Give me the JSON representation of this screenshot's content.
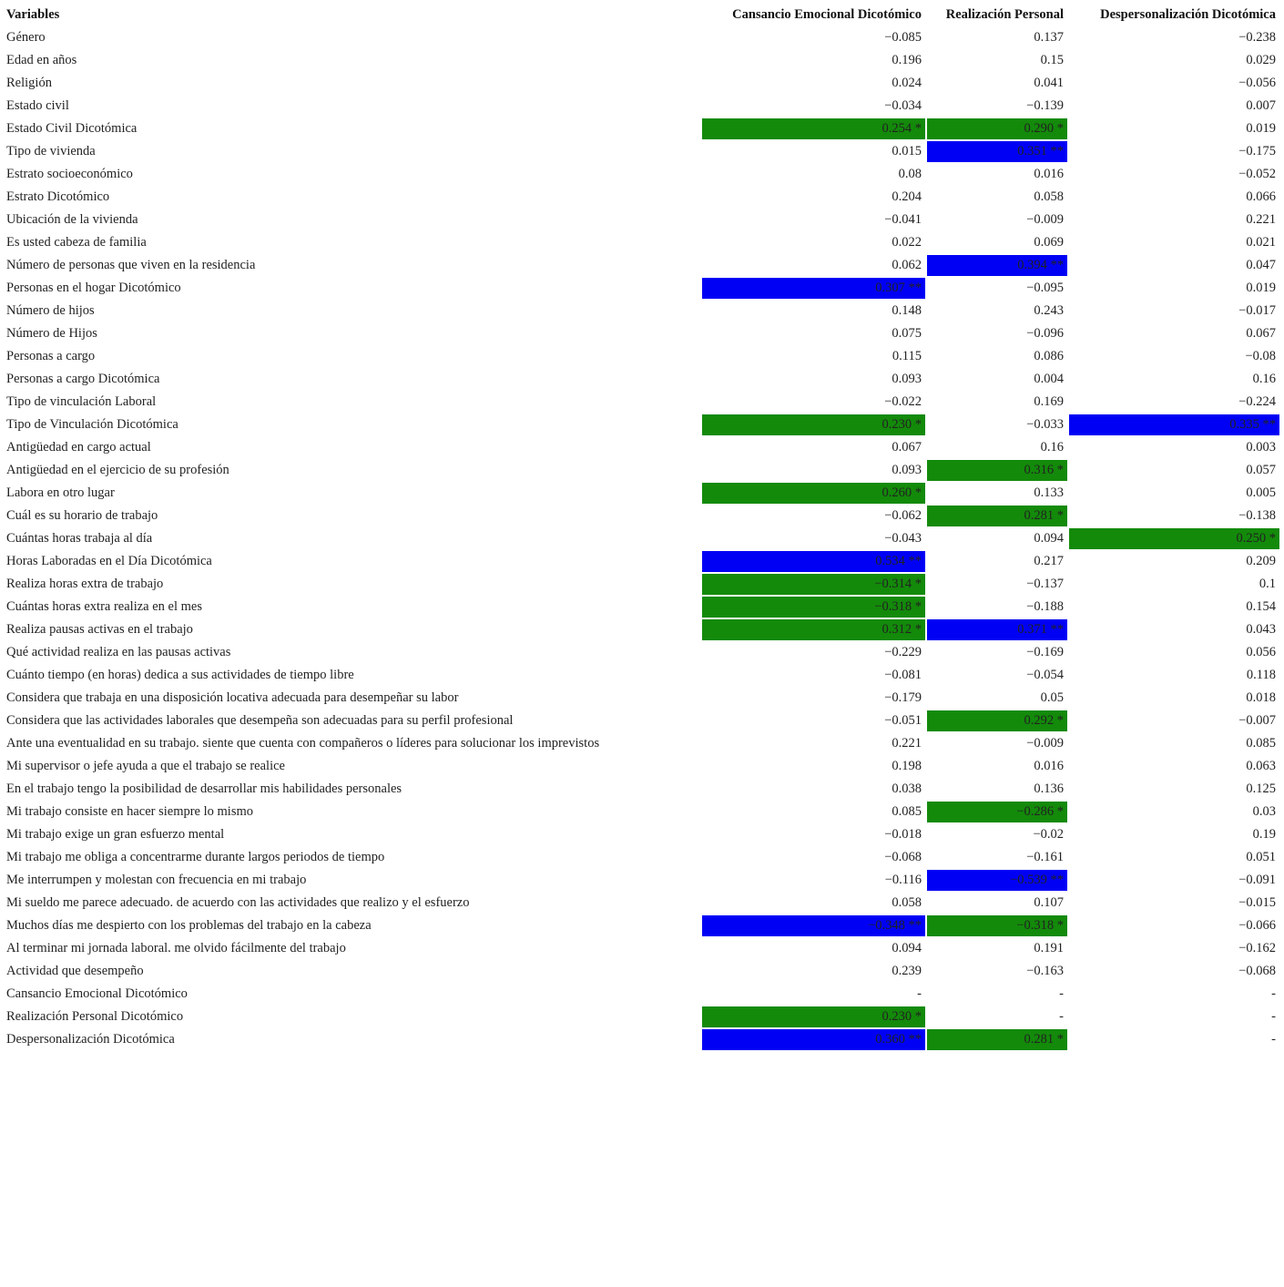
{
  "table": {
    "header": [
      "Variables",
      "Cansancio Emocional Dicotómico",
      "Realización Personal",
      "Despersonalización Dicotómica"
    ],
    "rows": [
      [
        "Género",
        "−0.085",
        "0.137",
        "−0.238"
      ],
      [
        "Edad en años",
        "0.196",
        "0.15",
        "0.029"
      ],
      [
        "Religión",
        "0.024",
        "0.041",
        "−0.056"
      ],
      [
        "Estado civil",
        "−0.034",
        "−0.139",
        "0.007"
      ],
      [
        "Estado Civil Dicotómica",
        "0.254 *",
        "0.290 *",
        "0.019"
      ],
      [
        "Tipo de vivienda",
        "0.015",
        "0.351 **",
        "−0.175"
      ],
      [
        "Estrato socioeconómico",
        "0.08",
        "0.016",
        "−0.052"
      ],
      [
        "Estrato Dicotómico",
        "0.204",
        "0.058",
        "0.066"
      ],
      [
        "Ubicación de la vivienda",
        "−0.041",
        "−0.009",
        "0.221"
      ],
      [
        "Es usted cabeza de familia",
        "0.022",
        "0.069",
        "0.021"
      ],
      [
        "Número de personas que viven en la residencia",
        "0.062",
        "0.394 **",
        "0.047"
      ],
      [
        "Personas en el hogar Dicotómico",
        "0.307 **",
        "−0.095",
        "0.019"
      ],
      [
        "Número de hijos",
        "0.148",
        "0.243",
        "−0.017"
      ],
      [
        "Número de Hijos",
        "0.075",
        "−0.096",
        "0.067"
      ],
      [
        "Personas a cargo",
        "0.115",
        "0.086",
        "−0.08"
      ],
      [
        "Personas a cargo Dicotómica",
        "0.093",
        "0.004",
        "0.16"
      ],
      [
        "Tipo de vinculación Laboral",
        "−0.022",
        "0.169",
        "−0.224"
      ],
      [
        "Tipo de Vinculación Dicotómica",
        "0.230 *",
        "−0.033",
        "0.335 **"
      ],
      [
        "Antigüedad en cargo actual",
        "0.067",
        "0.16",
        "0.003"
      ],
      [
        "Antigüedad en el ejercicio de su profesión",
        "0.093",
        "0.316 *",
        "0.057"
      ],
      [
        "Labora en otro lugar",
        "0.260 *",
        "0.133",
        "0.005"
      ],
      [
        "Cuál es su horario de trabajo",
        "−0.062",
        "0.281 *",
        "−0.138"
      ],
      [
        "Cuántas horas trabaja al día",
        "−0.043",
        "0.094",
        "0.250 *"
      ],
      [
        "Horas Laboradas en el Día Dicotómica",
        "0.534 **",
        "0.217",
        "0.209"
      ],
      [
        "Realiza horas extra de trabajo",
        "−0.314 *",
        "−0.137",
        "0.1"
      ],
      [
        "Cuántas horas extra realiza en el mes",
        "−0.318 *",
        "−0.188",
        "0.154"
      ],
      [
        "Realiza pausas activas en el trabajo",
        "0.312 *",
        "0.371 **",
        "0.043"
      ],
      [
        "Qué actividad realiza en las pausas activas",
        "−0.229",
        "−0.169",
        "0.056"
      ],
      [
        "Cuánto tiempo (en horas) dedica a sus actividades de tiempo libre",
        "−0.081",
        "−0.054",
        "0.118"
      ],
      [
        "Considera que trabaja en una disposición locativa adecuada para desempeñar su labor",
        "−0.179",
        "0.05",
        "0.018"
      ],
      [
        "Considera que las actividades laborales que desempeña son adecuadas para su perfil profesional",
        "−0.051",
        "0.292 *",
        "−0.007"
      ],
      [
        "Ante una eventualidad en su trabajo. siente que cuenta con compañeros o líderes para solucionar los imprevistos",
        "0.221",
        "−0.009",
        "0.085"
      ],
      [
        "Mi supervisor o jefe ayuda a que el trabajo se realice",
        "0.198",
        "0.016",
        "0.063"
      ],
      [
        "En el trabajo tengo la posibilidad de desarrollar mis habilidades personales",
        "0.038",
        "0.136",
        "0.125"
      ],
      [
        "Mi trabajo consiste en hacer siempre lo mismo",
        "0.085",
        "−0.286 *",
        "0.03"
      ],
      [
        "Mi trabajo exige un gran esfuerzo mental",
        "−0.018",
        "−0.02",
        "0.19"
      ],
      [
        "Mi trabajo me obliga a concentrarme durante largos periodos de tiempo",
        "−0.068",
        "−0.161",
        "0.051"
      ],
      [
        "Me interrumpen y molestan con frecuencia en mi trabajo",
        "−0.116",
        "−0.539 **",
        "−0.091"
      ],
      [
        "Mi sueldo me parece adecuado. de acuerdo con las actividades que realizo y el esfuerzo",
        "0.058",
        "0.107",
        "−0.015"
      ],
      [
        "Muchos días me despierto con los problemas del trabajo en la cabeza",
        "−0.348 **",
        "−0.318 *",
        "−0.066"
      ],
      [
        "Al terminar mi jornada laboral. me olvido fácilmente del trabajo",
        "0.094",
        "0.191",
        "−0.162"
      ],
      [
        "Actividad que desempeño",
        "0.239",
        "−0.163",
        "−0.068"
      ],
      [
        "Cansancio Emocional Dicotómico",
        "-",
        "-",
        "-"
      ],
      [
        "Realización Personal Dicotómico",
        "0.230 *",
        "-",
        "-"
      ],
      [
        "Despersonalización Dicotómica",
        "0.360 **",
        "0.281 *",
        "-"
      ]
    ]
  }
}
